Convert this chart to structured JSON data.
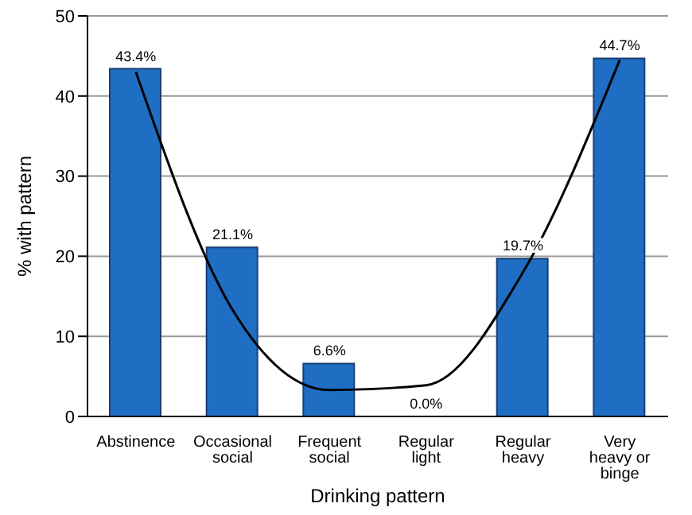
{
  "chart_data": {
    "type": "bar",
    "xlabel": "Drinking pattern",
    "ylabel": "% with pattern",
    "categories": [
      "Abstinence",
      "Occasional social",
      "Frequent social",
      "Regular light",
      "Regular heavy",
      "Very heavy or binge"
    ],
    "ylim": [
      0,
      50
    ],
    "yticks": [
      0,
      10,
      20,
      30,
      40,
      50
    ],
    "grid": "y",
    "series": [
      {
        "color": "#1f6ec4",
        "values": [
          43.4,
          21.1,
          6.6,
          0.0,
          19.7,
          44.7
        ],
        "value_labels": [
          "43.4%",
          "21.1%",
          "6.6%",
          "0.0%",
          "19.7%",
          "44.7%"
        ]
      },
      {
        "type": "line",
        "color": "#000000",
        "marker": "none",
        "values": [
          43,
          13.3,
          3.3,
          3.9,
          18,
          44.5
        ]
      }
    ]
  }
}
